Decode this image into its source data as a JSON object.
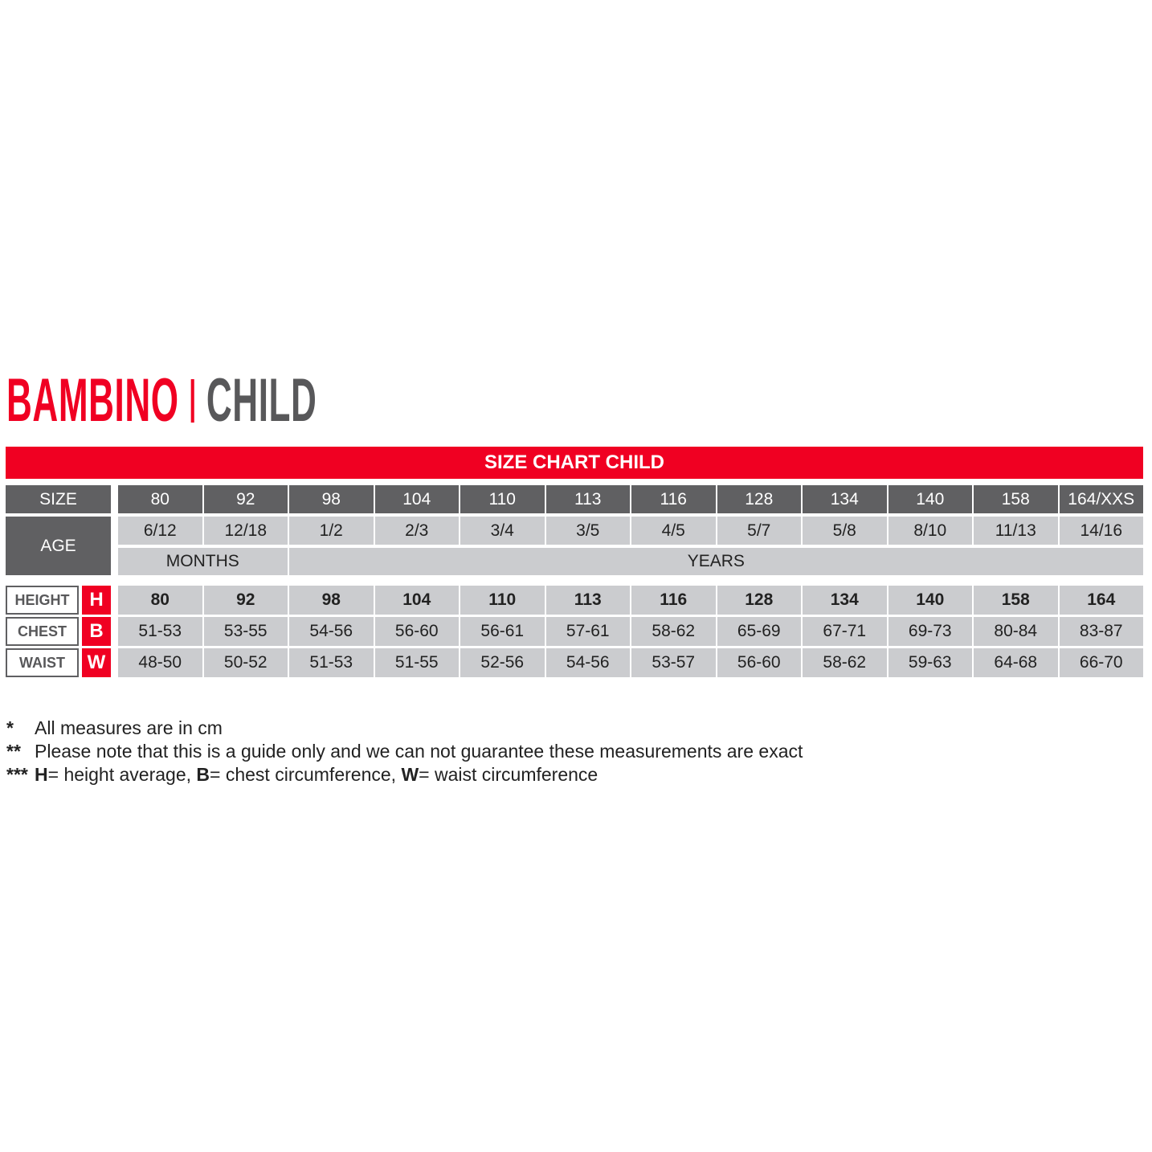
{
  "title": {
    "primary": "BAMBINO",
    "secondary": "CHILD"
  },
  "banner": "SIZE CHART CHILD",
  "labels": {
    "size": "SIZE",
    "age": "AGE",
    "months": "MONTHS",
    "years": "YEARS"
  },
  "sizes": [
    "80",
    "92",
    "98",
    "104",
    "110",
    "113",
    "116",
    "128",
    "134",
    "140",
    "158",
    "164/XXS"
  ],
  "ages": [
    "6/12",
    "12/18",
    "1/2",
    "2/3",
    "3/4",
    "3/5",
    "4/5",
    "5/7",
    "5/8",
    "8/10",
    "11/13",
    "14/16"
  ],
  "measures": [
    {
      "label": "HEIGHT",
      "letter": "H",
      "values": [
        "80",
        "92",
        "98",
        "104",
        "110",
        "113",
        "116",
        "128",
        "134",
        "140",
        "158",
        "164"
      ]
    },
    {
      "label": "CHEST",
      "letter": "B",
      "values": [
        "51-53",
        "53-55",
        "54-56",
        "56-60",
        "56-61",
        "57-61",
        "58-62",
        "65-69",
        "67-71",
        "69-73",
        "80-84",
        "83-87"
      ]
    },
    {
      "label": "WAIST",
      "letter": "W",
      "values": [
        "48-50",
        "50-52",
        "51-53",
        "51-55",
        "52-56",
        "54-56",
        "53-57",
        "56-60",
        "58-62",
        "59-63",
        "64-68",
        "66-70"
      ]
    }
  ],
  "notes": [
    {
      "mark": "*",
      "text": "All measures are in cm"
    },
    {
      "mark": "**",
      "text": "Please note that this is a guide only and we can not guarantee these measurements are exact"
    },
    {
      "mark": "***",
      "parts": [
        {
          "b": "H",
          "t": "= height average, "
        },
        {
          "b": "B",
          "t": "= chest circumference, "
        },
        {
          "b": "W",
          "t": "= waist circumference"
        }
      ]
    }
  ],
  "colors": {
    "accent": "#f00022",
    "dark": "#606062",
    "light": "#cbcccf"
  }
}
